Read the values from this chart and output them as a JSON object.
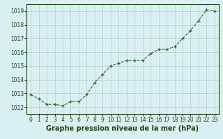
{
  "x": [
    0,
    1,
    2,
    3,
    4,
    5,
    6,
    7,
    8,
    9,
    10,
    11,
    12,
    13,
    14,
    15,
    16,
    17,
    18,
    19,
    20,
    21,
    22,
    23
  ],
  "y": [
    1012.9,
    1012.6,
    1012.2,
    1012.2,
    1012.1,
    1012.4,
    1012.4,
    1012.9,
    1013.8,
    1014.4,
    1015.0,
    1015.2,
    1015.4,
    1015.4,
    1015.4,
    1015.9,
    1016.2,
    1016.2,
    1016.4,
    1017.0,
    1017.6,
    1018.3,
    1019.1,
    1019.0
  ],
  "line_color": "#2d6a2d",
  "marker_color": "#2d6a2d",
  "bg_color": "#d8f0f0",
  "grid_color": "#c0c8d0",
  "xlabel": "Graphe pression niveau de la mer (hPa)",
  "xlabel_color": "#1a4a1a",
  "ylim_min": 1011.5,
  "ylim_max": 1019.5,
  "yticks": [
    1012,
    1013,
    1014,
    1015,
    1016,
    1017,
    1018,
    1019
  ],
  "xticks": [
    0,
    1,
    2,
    3,
    4,
    5,
    6,
    7,
    8,
    9,
    10,
    11,
    12,
    13,
    14,
    15,
    16,
    17,
    18,
    19,
    20,
    21,
    22,
    23
  ],
  "tick_fontsize": 5.5,
  "label_fontsize": 7
}
